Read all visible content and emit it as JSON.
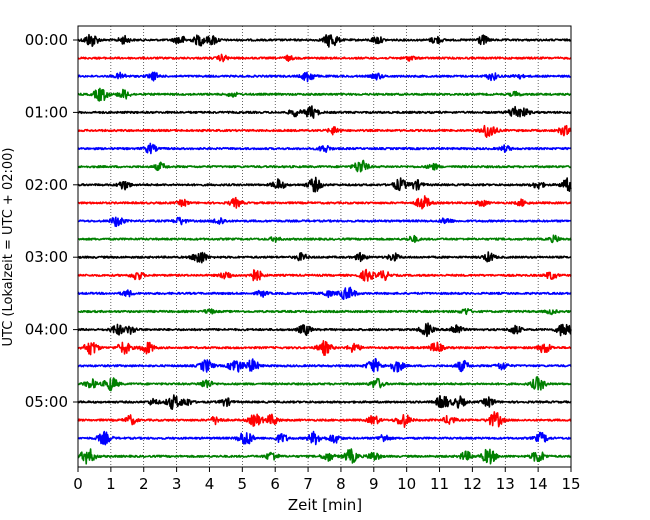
{
  "chart_data": {
    "type": "line",
    "xlabel": "Zeit  [min]",
    "ylabel": "UTC (Lokalzeit = UTC + 02:00)",
    "xlim": [
      0,
      15
    ],
    "x_ticks": [
      0,
      1,
      2,
      3,
      4,
      5,
      6,
      7,
      8,
      9,
      10,
      11,
      12,
      13,
      14,
      15
    ],
    "y_tick_labels": [
      "00:00",
      "01:00",
      "02:00",
      "03:00",
      "04:00",
      "05:00"
    ],
    "y_tick_rows": [
      0,
      4,
      8,
      12,
      16,
      20
    ],
    "row_interval_minutes": 15,
    "row_count": 24,
    "grid": "vertical dotted lines at each minute",
    "row_colors": [
      "#000000",
      "#ff0000",
      "#0000ff",
      "#008000"
    ],
    "rows": [
      {
        "row": 0,
        "events": [
          [
            0.4,
            0.9
          ],
          [
            1.4,
            0.5
          ],
          [
            3.1,
            0.6
          ],
          [
            3.7,
            0.7
          ],
          [
            4.1,
            0.6
          ],
          [
            7.7,
            1.0
          ],
          [
            9.1,
            0.5
          ],
          [
            10.9,
            0.5
          ],
          [
            12.3,
            0.6
          ]
        ]
      },
      {
        "row": 1,
        "events": [
          [
            4.4,
            0.4
          ],
          [
            6.4,
            0.3
          ],
          [
            10.1,
            0.3
          ]
        ]
      },
      {
        "row": 2,
        "events": [
          [
            1.3,
            0.4
          ],
          [
            2.3,
            0.5
          ],
          [
            7.0,
            0.7
          ],
          [
            9.1,
            0.4
          ],
          [
            12.6,
            0.5
          ],
          [
            13.4,
            0.3
          ]
        ]
      },
      {
        "row": 3,
        "events": [
          [
            0.7,
            0.9
          ],
          [
            1.4,
            0.6
          ],
          [
            4.7,
            0.3
          ],
          [
            13.3,
            0.3
          ]
        ]
      },
      {
        "row": 4,
        "events": [
          [
            6.6,
            0.5
          ],
          [
            7.1,
            0.8
          ],
          [
            13.3,
            0.8
          ],
          [
            13.6,
            0.4
          ]
        ]
      },
      {
        "row": 5,
        "events": [
          [
            7.8,
            0.5
          ],
          [
            12.5,
            1.0
          ],
          [
            14.8,
            0.6
          ]
        ]
      },
      {
        "row": 6,
        "events": [
          [
            2.2,
            0.6
          ],
          [
            7.5,
            0.5
          ],
          [
            13.0,
            0.4
          ]
        ]
      },
      {
        "row": 7,
        "events": [
          [
            2.5,
            0.5
          ],
          [
            8.6,
            0.9
          ],
          [
            10.8,
            0.4
          ]
        ]
      },
      {
        "row": 8,
        "events": [
          [
            1.4,
            0.6
          ],
          [
            6.1,
            0.7
          ],
          [
            7.2,
            0.9
          ],
          [
            9.8,
            0.8
          ],
          [
            10.3,
            0.6
          ],
          [
            14.0,
            0.5
          ],
          [
            14.9,
            0.8
          ]
        ]
      },
      {
        "row": 9,
        "events": [
          [
            3.2,
            0.4
          ],
          [
            4.8,
            0.6
          ],
          [
            10.5,
            0.9
          ],
          [
            12.3,
            0.4
          ],
          [
            13.5,
            0.4
          ]
        ]
      },
      {
        "row": 10,
        "events": [
          [
            1.2,
            0.7
          ],
          [
            3.1,
            0.5
          ],
          [
            4.3,
            0.5
          ],
          [
            11.2,
            0.4
          ]
        ]
      },
      {
        "row": 11,
        "events": [
          [
            6.0,
            0.3
          ],
          [
            10.2,
            0.4
          ],
          [
            14.5,
            0.4
          ]
        ]
      },
      {
        "row": 12,
        "events": [
          [
            3.7,
            0.9
          ],
          [
            6.8,
            0.5
          ],
          [
            8.6,
            0.5
          ],
          [
            9.6,
            0.5
          ],
          [
            12.5,
            0.6
          ]
        ]
      },
      {
        "row": 13,
        "events": [
          [
            1.8,
            0.6
          ],
          [
            4.5,
            0.5
          ],
          [
            5.4,
            0.8
          ],
          [
            8.8,
            0.8
          ],
          [
            9.3,
            0.6
          ],
          [
            14.4,
            0.5
          ]
        ]
      },
      {
        "row": 14,
        "events": [
          [
            1.5,
            0.4
          ],
          [
            5.6,
            0.4
          ],
          [
            7.6,
            0.4
          ],
          [
            8.1,
            0.6
          ],
          [
            8.3,
            0.5
          ]
        ]
      },
      {
        "row": 15,
        "events": [
          [
            4.0,
            0.3
          ],
          [
            11.8,
            0.4
          ],
          [
            14.4,
            0.3
          ]
        ]
      },
      {
        "row": 16,
        "events": [
          [
            1.2,
            0.7
          ],
          [
            1.6,
            0.5
          ],
          [
            6.9,
            0.7
          ],
          [
            10.6,
            0.8
          ],
          [
            11.5,
            0.7
          ],
          [
            13.3,
            0.6
          ],
          [
            14.8,
            1.0
          ]
        ]
      },
      {
        "row": 17,
        "events": [
          [
            0.4,
            0.9
          ],
          [
            1.4,
            0.8
          ],
          [
            2.1,
            0.8
          ],
          [
            7.5,
            0.9
          ],
          [
            8.4,
            0.6
          ],
          [
            10.9,
            0.7
          ],
          [
            14.2,
            0.7
          ]
        ]
      },
      {
        "row": 18,
        "events": [
          [
            3.9,
            0.8
          ],
          [
            4.8,
            0.9
          ],
          [
            5.3,
            0.8
          ],
          [
            9.0,
            0.9
          ],
          [
            9.7,
            0.8
          ],
          [
            11.7,
            0.7
          ],
          [
            12.9,
            0.5
          ]
        ]
      },
      {
        "row": 19,
        "events": [
          [
            0.4,
            0.6
          ],
          [
            1.0,
            0.9
          ],
          [
            3.9,
            0.6
          ],
          [
            9.1,
            0.7
          ],
          [
            14.0,
            0.9
          ]
        ]
      },
      {
        "row": 20,
        "events": [
          [
            2.3,
            0.4
          ],
          [
            2.9,
            0.9
          ],
          [
            3.3,
            0.5
          ],
          [
            4.5,
            0.5
          ],
          [
            11.1,
            0.9
          ],
          [
            11.6,
            0.7
          ],
          [
            12.5,
            0.6
          ]
        ]
      },
      {
        "row": 21,
        "events": [
          [
            1.6,
            0.6
          ],
          [
            4.2,
            0.5
          ],
          [
            5.4,
            0.8
          ],
          [
            5.9,
            0.7
          ],
          [
            9.0,
            0.6
          ],
          [
            9.9,
            0.9
          ],
          [
            11.3,
            0.6
          ],
          [
            12.7,
            1.0
          ]
        ]
      },
      {
        "row": 22,
        "events": [
          [
            0.8,
            0.8
          ],
          [
            5.1,
            1.0
          ],
          [
            6.2,
            0.6
          ],
          [
            7.2,
            0.8
          ],
          [
            7.8,
            0.6
          ],
          [
            9.3,
            0.5
          ],
          [
            14.1,
            0.7
          ]
        ]
      },
      {
        "row": 23,
        "events": [
          [
            0.3,
            1.0
          ],
          [
            5.9,
            0.6
          ],
          [
            7.6,
            0.6
          ],
          [
            8.3,
            0.9
          ],
          [
            9.0,
            0.6
          ],
          [
            11.8,
            0.6
          ],
          [
            12.5,
            1.0
          ],
          [
            14.0,
            0.8
          ]
        ]
      }
    ]
  }
}
